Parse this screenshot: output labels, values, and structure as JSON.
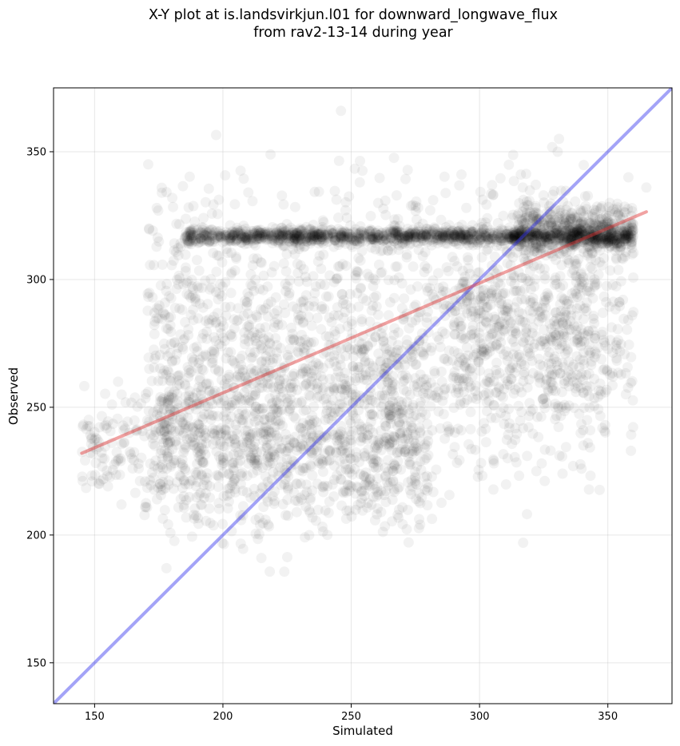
{
  "chart_data": {
    "type": "scatter",
    "title_line1": "X-Y plot at is.landsvirkjun.l01 for downward_longwave_flux",
    "title_line2": "from rav2-13-14 during year",
    "xlabel": "Simulated",
    "ylabel": "Observed",
    "xlim": [
      134,
      375
    ],
    "ylim": [
      134,
      375
    ],
    "x_ticks": [
      150,
      200,
      250,
      300,
      350
    ],
    "y_ticks": [
      150,
      200,
      250,
      300,
      350
    ],
    "grid": true,
    "point_color": "#000000",
    "point_alpha": 0.05,
    "clusters": [
      {
        "x_range": [
          185,
          360
        ],
        "y_mean": 317,
        "y_spread": 1.5,
        "count": 1400
      },
      {
        "x_range": [
          315,
          360
        ],
        "y_mean": 319,
        "y_spread": 5,
        "count": 500
      },
      {
        "x_range": [
          170,
          345
        ],
        "y_mean": 280,
        "y_spread": 28,
        "count": 1400
      },
      {
        "x_range": [
          175,
          280
        ],
        "y_mean": 238,
        "y_spread": 18,
        "count": 1100
      },
      {
        "x_range": [
          290,
          360
        ],
        "y_mean": 280,
        "y_spread": 22,
        "count": 500
      },
      {
        "x_range": [
          145,
          180
        ],
        "y_mean": 235,
        "y_spread": 12,
        "count": 150
      }
    ],
    "outliers": [
      {
        "x": 246,
        "y": 366
      },
      {
        "x": 358,
        "y": 340
      },
      {
        "x": 365,
        "y": 336
      },
      {
        "x": 317,
        "y": 197
      },
      {
        "x": 178,
        "y": 187
      },
      {
        "x": 215,
        "y": 191
      },
      {
        "x": 149,
        "y": 221
      }
    ],
    "fit_line": {
      "color": "#e03030",
      "x": [
        145,
        365
      ],
      "y": [
        232,
        326.5
      ]
    },
    "identity_line": {
      "color": "#3333ee",
      "x": [
        134,
        375
      ],
      "y": [
        134,
        375
      ]
    }
  }
}
